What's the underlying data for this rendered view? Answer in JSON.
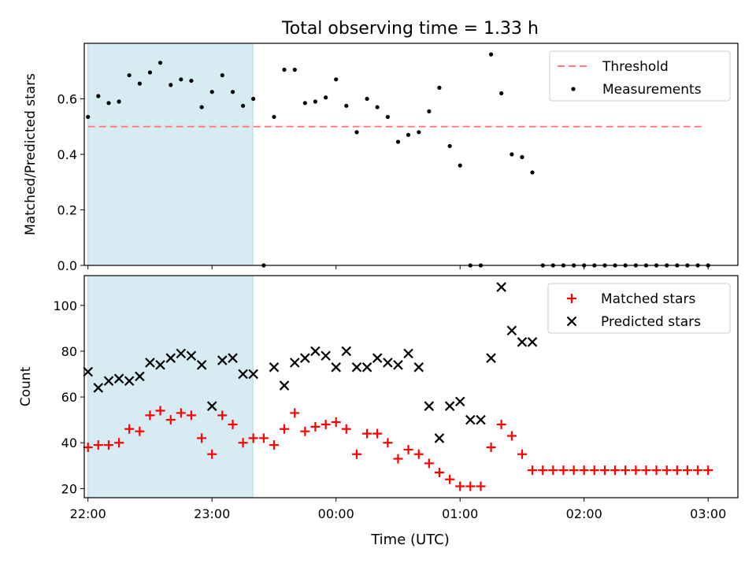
{
  "title": "Total observing time = 1.33 h",
  "x_axis": {
    "label": "Time (UTC)",
    "ticks": [
      "22:00",
      "23:00",
      "00:00",
      "01:00",
      "02:00",
      "03:00"
    ],
    "tick_hours": [
      0,
      1,
      2,
      3,
      4,
      5
    ],
    "range_hours_after_22": [
      -0.03,
      5.24
    ]
  },
  "highlight": {
    "start_hours": 0.0,
    "end_hours": 1.33,
    "color": "#add8e6"
  },
  "colors": {
    "threshold": "#ff7f7f",
    "measurements": "#000000",
    "matched": "#ff0000",
    "predicted": "#000000"
  },
  "chart_data": [
    {
      "type": "scatter",
      "ylabel": "Matched/Predicted stars",
      "ylim": [
        0,
        0.8
      ],
      "yticks": [
        0.0,
        0.2,
        0.4,
        0.6
      ],
      "ytick_labels": [
        "0.0",
        "0.2",
        "0.4",
        "0.6"
      ],
      "legend_position": "top-right",
      "threshold": {
        "name": "Threshold",
        "value": 0.5,
        "x_start": 0.0,
        "x_end": 4.95
      },
      "series": [
        {
          "name": "Measurements",
          "x": [
            0.0,
            0.083,
            0.167,
            0.25,
            0.333,
            0.417,
            0.5,
            0.583,
            0.667,
            0.75,
            0.833,
            0.917,
            1.0,
            1.083,
            1.167,
            1.25,
            1.333,
            1.417,
            1.5,
            1.583,
            1.667,
            1.75,
            1.833,
            1.917,
            2.0,
            2.083,
            2.167,
            2.25,
            2.333,
            2.417,
            2.5,
            2.583,
            2.667,
            2.75,
            2.833,
            2.917,
            3.0,
            3.083,
            3.167,
            3.25,
            3.333,
            3.417,
            3.5,
            3.583,
            3.667,
            3.75,
            3.833,
            3.917,
            4.0,
            4.083,
            4.167,
            4.25,
            4.333,
            4.417,
            4.5,
            4.583,
            4.667,
            4.75,
            4.833,
            4.917,
            5.0
          ],
          "y": [
            0.535,
            0.61,
            0.585,
            0.59,
            0.685,
            0.655,
            0.695,
            0.73,
            0.65,
            0.67,
            0.665,
            0.57,
            0.625,
            0.685,
            0.625,
            0.575,
            0.6,
            0.0,
            0.535,
            0.705,
            0.705,
            0.585,
            0.59,
            0.605,
            0.67,
            0.575,
            0.48,
            0.6,
            0.57,
            0.535,
            0.445,
            0.47,
            0.48,
            0.555,
            0.64,
            0.43,
            0.36,
            0.0,
            0.0,
            0.76,
            0.62,
            0.4,
            0.39,
            0.335,
            0.0,
            0.0,
            0.0,
            0.0,
            0.0,
            0.0,
            0.0,
            0.0,
            0.0,
            0.0,
            0.0,
            0.0,
            0.0,
            0.0,
            0.0,
            0.0,
            0.0
          ]
        }
      ]
    },
    {
      "type": "scatter",
      "ylabel": "Count",
      "ylim": [
        16,
        113
      ],
      "yticks": [
        20,
        40,
        60,
        80,
        100
      ],
      "ytick_labels": [
        "20",
        "40",
        "60",
        "80",
        "100"
      ],
      "legend_position": "top-right",
      "series": [
        {
          "name": "Matched stars",
          "marker": "plus",
          "x": [
            0.0,
            0.083,
            0.167,
            0.25,
            0.333,
            0.417,
            0.5,
            0.583,
            0.667,
            0.75,
            0.833,
            0.917,
            1.0,
            1.083,
            1.167,
            1.25,
            1.333,
            1.417,
            1.5,
            1.583,
            1.667,
            1.75,
            1.833,
            1.917,
            2.0,
            2.083,
            2.167,
            2.25,
            2.333,
            2.417,
            2.5,
            2.583,
            2.667,
            2.75,
            2.833,
            2.917,
            3.0,
            3.083,
            3.167,
            3.25,
            3.333,
            3.417,
            3.5,
            3.583,
            3.667,
            3.75,
            3.833,
            3.917,
            4.0,
            4.083,
            4.167,
            4.25,
            4.333,
            4.417,
            4.5,
            4.583,
            4.667,
            4.75,
            4.833,
            4.917,
            5.0
          ],
          "y": [
            38,
            39,
            39,
            40,
            46,
            45,
            52,
            54,
            50,
            53,
            52,
            42,
            35,
            52,
            48,
            40,
            42,
            42,
            39,
            46,
            53,
            45,
            47,
            48,
            49,
            46,
            35,
            44,
            44,
            40,
            33,
            37,
            35,
            31,
            27,
            24,
            21,
            21,
            21,
            38,
            48,
            43,
            35,
            28,
            28,
            28,
            28,
            28,
            28,
            28,
            28,
            28,
            28,
            28,
            28,
            28,
            28,
            28,
            28,
            28,
            28
          ]
        },
        {
          "name": "Predicted stars",
          "marker": "x",
          "x": [
            0.0,
            0.083,
            0.167,
            0.25,
            0.333,
            0.417,
            0.5,
            0.583,
            0.667,
            0.75,
            0.833,
            0.917,
            1.0,
            1.083,
            1.167,
            1.25,
            1.333,
            1.5,
            1.583,
            1.667,
            1.75,
            1.833,
            1.917,
            2.0,
            2.083,
            2.167,
            2.25,
            2.333,
            2.417,
            2.5,
            2.583,
            2.667,
            2.75,
            2.833,
            2.917,
            3.0,
            3.083,
            3.167,
            3.25,
            3.333,
            3.417,
            3.5,
            3.583
          ],
          "y": [
            71,
            64,
            67,
            68,
            67,
            69,
            75,
            74,
            77,
            79,
            78,
            74,
            56,
            76,
            77,
            70,
            70,
            73,
            65,
            75,
            77,
            80,
            78,
            73,
            80,
            73,
            73,
            77,
            75,
            74,
            79,
            73,
            56,
            42,
            56,
            58,
            50,
            50,
            77,
            108,
            89,
            84,
            84
          ]
        }
      ]
    }
  ]
}
